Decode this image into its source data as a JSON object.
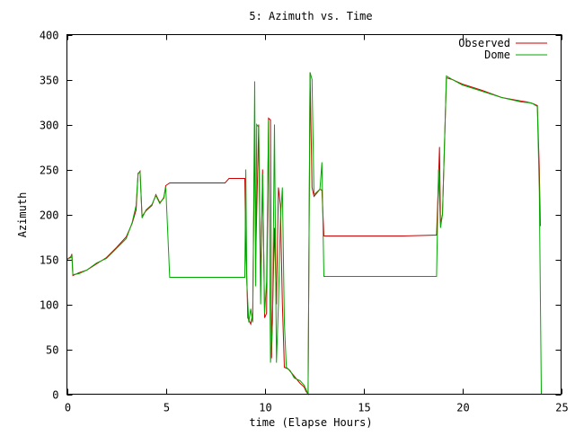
{
  "chart_data": {
    "type": "line",
    "title": "5: Azimuth vs. Time",
    "xlabel": "time (Elapse Hours)",
    "ylabel": "Azimuth",
    "xlim": [
      0,
      25
    ],
    "ylim": [
      0,
      400
    ],
    "xticks": [
      0,
      5,
      10,
      15,
      20,
      25
    ],
    "yticks": [
      0,
      50,
      100,
      150,
      200,
      250,
      300,
      350,
      400
    ],
    "grid": false,
    "legend_position": "top-right",
    "series": [
      {
        "name": "Observed",
        "color": "#cc0000",
        "points": [
          [
            0,
            150
          ],
          [
            0.2,
            153
          ],
          [
            0.25,
            156
          ],
          [
            0.3,
            132
          ],
          [
            0.6,
            135
          ],
          [
            1.0,
            138
          ],
          [
            1.5,
            145
          ],
          [
            2.0,
            152
          ],
          [
            2.5,
            163
          ],
          [
            3.0,
            175
          ],
          [
            3.3,
            190
          ],
          [
            3.5,
            205
          ],
          [
            3.6,
            245
          ],
          [
            3.7,
            248
          ],
          [
            3.8,
            198
          ],
          [
            4.0,
            204
          ],
          [
            4.3,
            210
          ],
          [
            4.5,
            222
          ],
          [
            4.7,
            213
          ],
          [
            4.9,
            218
          ],
          [
            5.0,
            232
          ],
          [
            5.2,
            235
          ],
          [
            8.0,
            235
          ],
          [
            8.2,
            240
          ],
          [
            9.0,
            240
          ],
          [
            9.05,
            160
          ],
          [
            9.1,
            130
          ],
          [
            9.15,
            85
          ],
          [
            9.3,
            78
          ],
          [
            9.4,
            90
          ],
          [
            9.5,
            300
          ],
          [
            9.55,
            150
          ],
          [
            9.7,
            300
          ],
          [
            9.8,
            120
          ],
          [
            9.9,
            250
          ],
          [
            10.0,
            85
          ],
          [
            10.1,
            90
          ],
          [
            10.2,
            307
          ],
          [
            10.3,
            305
          ],
          [
            10.35,
            40
          ],
          [
            10.5,
            185
          ],
          [
            10.6,
            100
          ],
          [
            10.7,
            230
          ],
          [
            10.8,
            210
          ],
          [
            10.9,
            100
          ],
          [
            11.0,
            30
          ],
          [
            11.2,
            28
          ],
          [
            11.5,
            20
          ],
          [
            11.8,
            12
          ],
          [
            12.0,
            8
          ],
          [
            12.1,
            3
          ],
          [
            12.2,
            0
          ],
          [
            12.3,
            358
          ],
          [
            12.4,
            230
          ],
          [
            12.5,
            220
          ],
          [
            12.8,
            228
          ],
          [
            12.9,
            227
          ],
          [
            13.0,
            176
          ],
          [
            15.0,
            176
          ],
          [
            17.0,
            176
          ],
          [
            18.7,
            177
          ],
          [
            18.8,
            240
          ],
          [
            18.85,
            275
          ],
          [
            18.9,
            190
          ],
          [
            19.0,
            200
          ],
          [
            19.2,
            352
          ],
          [
            19.5,
            350
          ],
          [
            20.0,
            345
          ],
          [
            21.0,
            338
          ],
          [
            22.0,
            330
          ],
          [
            23.0,
            326
          ],
          [
            23.3,
            325
          ],
          [
            23.6,
            323
          ],
          [
            23.8,
            321
          ],
          [
            23.9,
            250
          ],
          [
            23.95,
            187
          ]
        ]
      },
      {
        "name": "Dome",
        "color": "#00aa00",
        "points": [
          [
            0,
            150
          ],
          [
            0.2,
            152
          ],
          [
            0.25,
            155
          ],
          [
            0.3,
            133
          ],
          [
            0.6,
            134
          ],
          [
            1.0,
            138
          ],
          [
            1.5,
            146
          ],
          [
            2.0,
            151
          ],
          [
            2.5,
            162
          ],
          [
            3.0,
            173
          ],
          [
            3.3,
            191
          ],
          [
            3.5,
            210
          ],
          [
            3.6,
            246
          ],
          [
            3.7,
            247
          ],
          [
            3.8,
            196
          ],
          [
            4.0,
            205
          ],
          [
            4.3,
            211
          ],
          [
            4.5,
            221
          ],
          [
            4.7,
            212
          ],
          [
            4.9,
            219
          ],
          [
            5.0,
            230
          ],
          [
            5.2,
            130
          ],
          [
            8.0,
            130
          ],
          [
            9.0,
            130
          ],
          [
            9.05,
            250
          ],
          [
            9.1,
            125
          ],
          [
            9.2,
            80
          ],
          [
            9.3,
            95
          ],
          [
            9.4,
            80
          ],
          [
            9.5,
            348
          ],
          [
            9.55,
            120
          ],
          [
            9.6,
            300
          ],
          [
            9.7,
            297
          ],
          [
            9.8,
            100
          ],
          [
            9.9,
            245
          ],
          [
            10.0,
            90
          ],
          [
            10.1,
            125
          ],
          [
            10.2,
            305
          ],
          [
            10.3,
            35
          ],
          [
            10.4,
            80
          ],
          [
            10.5,
            300
          ],
          [
            10.6,
            35
          ],
          [
            10.7,
            100
          ],
          [
            10.8,
            195
          ],
          [
            10.9,
            230
          ],
          [
            11.0,
            80
          ],
          [
            11.1,
            30
          ],
          [
            11.3,
            26
          ],
          [
            11.5,
            18
          ],
          [
            11.8,
            15
          ],
          [
            12.0,
            10
          ],
          [
            12.1,
            5
          ],
          [
            12.2,
            0
          ],
          [
            12.3,
            358
          ],
          [
            12.4,
            350
          ],
          [
            12.5,
            222
          ],
          [
            12.8,
            228
          ],
          [
            12.9,
            258
          ],
          [
            13.0,
            131
          ],
          [
            15.0,
            131
          ],
          [
            17.0,
            131
          ],
          [
            18.7,
            131
          ],
          [
            18.8,
            250
          ],
          [
            18.9,
            185
          ],
          [
            19.0,
            200
          ],
          [
            19.2,
            354
          ],
          [
            19.5,
            350
          ],
          [
            20.0,
            344
          ],
          [
            21.0,
            337
          ],
          [
            22.0,
            330
          ],
          [
            23.0,
            325
          ],
          [
            23.5,
            324
          ],
          [
            23.8,
            320
          ],
          [
            23.9,
            225
          ],
          [
            24.0,
            0
          ]
        ]
      }
    ]
  }
}
